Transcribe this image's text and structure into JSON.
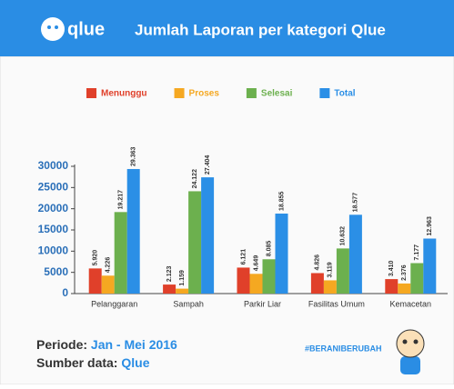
{
  "logo": "qlue",
  "chart_data": {
    "type": "bar",
    "title": "Jumlah Laporan per kategori Qlue",
    "categories": [
      "Pelanggaran",
      "Sampah",
      "Parkir Liar",
      "Fasilitas Umum",
      "Kemacetan"
    ],
    "series": [
      {
        "name": "Menunggu",
        "color": "#e0402a",
        "values": [
          5920,
          2123,
          6121,
          4826,
          3410
        ],
        "value_labels": [
          "5.920",
          "2.123",
          "6.121",
          "4.826",
          "3.410"
        ]
      },
      {
        "name": "Proses",
        "color": "#f5a821",
        "values": [
          4226,
          1159,
          4649,
          3119,
          2376
        ],
        "value_labels": [
          "4.226",
          "1.159",
          "4.649",
          "3.119",
          "2.376"
        ]
      },
      {
        "name": "Selesai",
        "color": "#6cb04e",
        "values": [
          19217,
          24122,
          8085,
          10632,
          7177
        ],
        "value_labels": [
          "19.217",
          "24.122",
          "8.085",
          "10.632",
          "7.177"
        ]
      },
      {
        "name": "Total",
        "color": "#2b8fe6",
        "values": [
          29363,
          27404,
          18855,
          18577,
          12963
        ],
        "value_labels": [
          "29.363",
          "27.404",
          "18.855",
          "18.577",
          "12.963"
        ]
      }
    ],
    "ylim": [
      0,
      30000
    ],
    "yticks": [
      0,
      5000,
      10000,
      15000,
      20000,
      25000,
      30000
    ]
  },
  "footer": {
    "period_label": "Periode:",
    "period_value": "Jan - Mei 2016",
    "source_label": "Sumber data:",
    "source_value": "Qlue",
    "hashtag": "#BERANIBERUBAH"
  }
}
